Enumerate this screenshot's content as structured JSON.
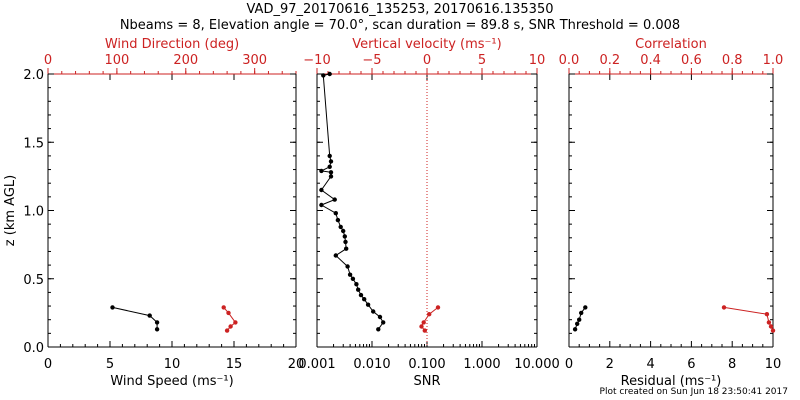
{
  "header": {
    "title": "VAD_97_20170616_135253, 20170616.135350",
    "subtitle": "Nbeams = 8, Elevation angle = 70.0°, scan duration = 89.8 s, SNR Threshold = 0.008"
  },
  "footer": {
    "text": "Plot created on Sun Jun 18 23:50:41 2017"
  },
  "colors": {
    "primary": "#000000",
    "secondary": "#cc2222"
  },
  "chart_data": [
    {
      "type": "line",
      "panel": "wind",
      "ylabel": "z (km AGL)",
      "ylim": [
        0,
        2
      ],
      "yticks": [
        "0.0",
        "0.5",
        "1.0",
        "1.5",
        "2.0"
      ],
      "xlabel_bottom": "Wind Speed (ms⁻¹)",
      "xlim_bottom": [
        0,
        20
      ],
      "xticks_bottom": [
        "0",
        "5",
        "10",
        "15",
        "20"
      ],
      "xlabel_top": "Wind Direction (deg)",
      "xlim_top": [
        0,
        360
      ],
      "xticks_top": [
        "0",
        "100",
        "200",
        "300"
      ],
      "series": [
        {
          "axis": "bottom",
          "color": "#000000",
          "x": [
            5.2,
            8.2,
            8.8,
            8.8
          ],
          "y": [
            0.29,
            0.23,
            0.18,
            0.13
          ]
        },
        {
          "axis": "top",
          "color": "#cc2222",
          "x": [
            255,
            262,
            272,
            265,
            260
          ],
          "y": [
            0.29,
            0.25,
            0.18,
            0.15,
            0.12
          ]
        }
      ]
    },
    {
      "type": "line",
      "panel": "snr",
      "xlabel_bottom": "SNR",
      "xscale_bottom": "log",
      "xlim_bottom": [
        0.001,
        10
      ],
      "xticks_bottom": [
        "0.001",
        "0.010",
        "0.100",
        "1.000",
        "10.000"
      ],
      "xlabel_top": "Vertical velocity (ms⁻¹)",
      "xlim_top": [
        -10,
        10
      ],
      "xticks_top": [
        "−10",
        "−5",
        "0",
        "5",
        "10"
      ],
      "ylim": [
        0,
        2
      ],
      "reference_line": {
        "axis": "top",
        "value": 0
      },
      "series": [
        {
          "axis": "bottom",
          "color": "#000000",
          "x": [
            0.0017,
            0.0013,
            0.0017,
            0.0018,
            0.0017,
            0.0012,
            0.0018,
            0.0018,
            0.0012,
            0.0021,
            0.0012,
            0.0022,
            0.0024,
            0.0027,
            0.003,
            0.0032,
            0.0033,
            0.0034,
            0.0022,
            0.0036,
            0.004,
            0.0045,
            0.0052,
            0.0056,
            0.0063,
            0.0072,
            0.0085,
            0.0105,
            0.014,
            0.016,
            0.013
          ],
          "y": [
            2.0,
            1.99,
            1.4,
            1.36,
            1.32,
            1.29,
            1.28,
            1.25,
            1.15,
            1.08,
            1.04,
            0.98,
            0.93,
            0.88,
            0.85,
            0.81,
            0.77,
            0.72,
            0.67,
            0.59,
            0.53,
            0.5,
            0.46,
            0.42,
            0.38,
            0.35,
            0.31,
            0.26,
            0.22,
            0.18,
            0.13
          ]
        },
        {
          "axis": "top",
          "color": "#cc2222",
          "x": [
            1.0,
            0.2,
            -0.3,
            -0.5,
            -0.2
          ],
          "y": [
            0.29,
            0.24,
            0.18,
            0.15,
            0.12
          ]
        }
      ]
    },
    {
      "type": "line",
      "panel": "residual",
      "xlabel_bottom": "Residual (ms⁻¹)",
      "xlim_bottom": [
        0,
        10
      ],
      "xticks_bottom": [
        "0",
        "2",
        "4",
        "6",
        "8",
        "10"
      ],
      "xlabel_top": "Correlation",
      "xlim_top": [
        0,
        1
      ],
      "xticks_top": [
        "0.0",
        "0.2",
        "0.4",
        "0.6",
        "0.8",
        "1.0"
      ],
      "ylim": [
        0,
        2
      ],
      "series": [
        {
          "axis": "bottom",
          "color": "#000000",
          "x": [
            0.8,
            0.6,
            0.5,
            0.4,
            0.3
          ],
          "y": [
            0.29,
            0.25,
            0.2,
            0.17,
            0.13
          ]
        },
        {
          "axis": "top",
          "color": "#cc2222",
          "x": [
            0.76,
            0.97,
            0.98,
            0.99,
            1.0
          ],
          "y": [
            0.29,
            0.24,
            0.18,
            0.15,
            0.12
          ]
        }
      ]
    }
  ]
}
